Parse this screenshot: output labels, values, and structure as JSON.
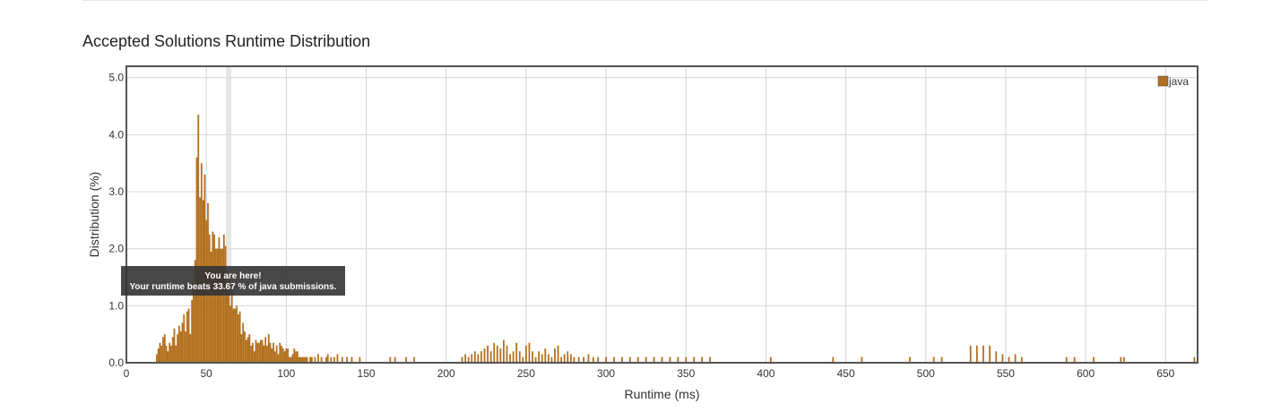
{
  "page": {
    "section_title": "Accepted Solutions Runtime Distribution"
  },
  "chart_data": {
    "type": "bar",
    "xlabel": "Runtime (ms)",
    "ylabel": "Distribution (%)",
    "xlim": [
      0,
      670
    ],
    "ylim": [
      0,
      5.2
    ],
    "x_ticks": [
      0,
      50,
      100,
      150,
      200,
      250,
      300,
      350,
      400,
      450,
      500,
      550,
      600,
      650
    ],
    "y_ticks": [
      "0.0",
      "1.0",
      "2.0",
      "3.0",
      "4.0",
      "5.0"
    ],
    "grid": true,
    "legend_position": "top-right",
    "series": [
      {
        "name": "java",
        "color": "#b26f1e",
        "x": [
          19,
          20,
          21,
          22,
          23,
          24,
          25,
          26,
          27,
          28,
          29,
          30,
          31,
          32,
          33,
          34,
          35,
          36,
          37,
          38,
          39,
          40,
          41,
          42,
          43,
          44,
          45,
          46,
          47,
          48,
          49,
          50,
          51,
          52,
          53,
          54,
          55,
          56,
          57,
          58,
          59,
          60,
          61,
          62,
          63,
          64,
          65,
          66,
          67,
          68,
          69,
          70,
          71,
          72,
          73,
          74,
          75,
          76,
          77,
          78,
          79,
          80,
          81,
          82,
          83,
          84,
          85,
          86,
          87,
          88,
          89,
          90,
          91,
          92,
          93,
          94,
          95,
          96,
          97,
          98,
          99,
          100,
          101,
          102,
          103,
          104,
          105,
          106,
          107,
          108,
          109,
          110,
          111,
          112,
          113,
          115,
          116,
          118,
          120,
          122,
          125,
          126,
          128,
          130,
          132,
          135,
          138,
          141,
          146,
          165,
          168,
          175,
          180,
          210,
          212,
          214,
          216,
          218,
          220,
          222,
          224,
          226,
          228,
          230,
          232,
          234,
          236,
          238,
          240,
          242,
          244,
          246,
          248,
          250,
          252,
          254,
          256,
          258,
          260,
          262,
          264,
          266,
          268,
          270,
          272,
          274,
          276,
          278,
          280,
          283,
          286,
          289,
          292,
          295,
          300,
          305,
          310,
          315,
          320,
          325,
          330,
          335,
          340,
          345,
          350,
          355,
          360,
          365,
          403,
          442,
          460,
          490,
          505,
          510,
          528,
          532,
          536,
          540,
          544,
          548,
          552,
          556,
          560,
          588,
          593,
          605,
          622,
          624,
          668
        ],
        "values": [
          0.15,
          0.25,
          0.35,
          0.3,
          0.45,
          0.5,
          0.3,
          0.2,
          0.35,
          0.3,
          0.45,
          0.6,
          0.3,
          0.5,
          0.65,
          0.55,
          0.7,
          0.85,
          0.55,
          0.9,
          0.95,
          0.5,
          1.1,
          1.4,
          1.8,
          3.6,
          4.35,
          2.9,
          3.5,
          2.85,
          3.3,
          2.5,
          2.8,
          2.25,
          1.95,
          2.3,
          2.25,
          2.0,
          2.0,
          2.2,
          2.0,
          2.0,
          2.25,
          2.05,
          1.25,
          1.55,
          1.0,
          1.3,
          0.95,
          0.95,
          1.0,
          0.85,
          0.9,
          0.5,
          0.7,
          0.55,
          0.4,
          0.45,
          0.5,
          0.3,
          0.35,
          0.2,
          0.4,
          0.35,
          0.35,
          0.4,
          0.4,
          0.3,
          0.45,
          0.3,
          0.5,
          0.35,
          0.25,
          0.35,
          0.2,
          0.3,
          0.15,
          0.35,
          0.3,
          0.25,
          0.2,
          0.25,
          0.25,
          0.1,
          0.1,
          0.15,
          0.25,
          0.2,
          0.2,
          0.1,
          0.1,
          0.1,
          0.1,
          0.1,
          0.1,
          0.1,
          0.1,
          0.1,
          0.15,
          0.1,
          0.1,
          0.15,
          0.1,
          0.1,
          0.15,
          0.1,
          0.1,
          0.1,
          0.1,
          0.1,
          0.1,
          0.1,
          0.1,
          0.1,
          0.15,
          0.1,
          0.15,
          0.2,
          0.15,
          0.2,
          0.25,
          0.3,
          0.2,
          0.35,
          0.3,
          0.25,
          0.4,
          0.3,
          0.15,
          0.2,
          0.35,
          0.2,
          0.1,
          0.3,
          0.35,
          0.2,
          0.1,
          0.2,
          0.15,
          0.25,
          0.15,
          0.1,
          0.25,
          0.3,
          0.1,
          0.15,
          0.2,
          0.15,
          0.1,
          0.1,
          0.1,
          0.15,
          0.1,
          0.1,
          0.1,
          0.1,
          0.1,
          0.1,
          0.1,
          0.1,
          0.1,
          0.1,
          0.1,
          0.1,
          0.1,
          0.1,
          0.1,
          0.1,
          0.1,
          0.1,
          0.1,
          0.1,
          0.1,
          0.1,
          0.3,
          0.3,
          0.3,
          0.3,
          0.2,
          0.15,
          0.1,
          0.15,
          0.1,
          0.1,
          0.1,
          0.1,
          0.1,
          0.1,
          0.1
        ]
      }
    ],
    "highlight": {
      "x": 64,
      "tooltip_line1": "You are here!",
      "tooltip_line2": "Your runtime beats 33.67 % of java submissions."
    }
  }
}
